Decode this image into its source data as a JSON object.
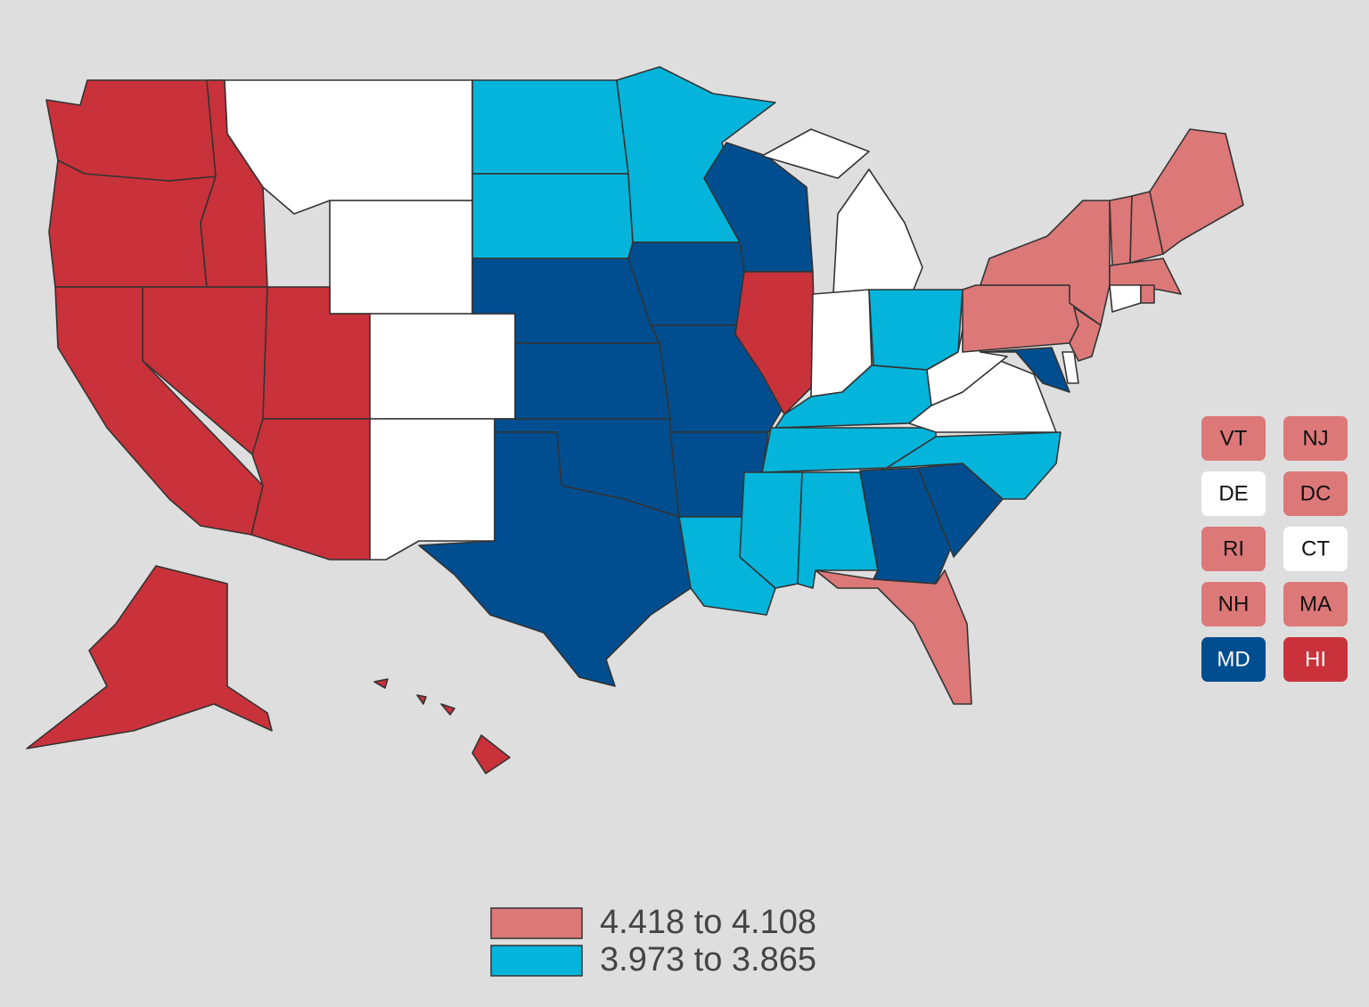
{
  "map": {
    "regions": [
      {
        "color": "#c9323a"
      },
      {
        "color": "#c9323a"
      },
      {
        "color": "#c9323a"
      },
      {
        "color": "#c9323a"
      },
      {
        "color": "#c9323a"
      },
      {
        "color": "#ffffff"
      },
      {
        "color": "#ffffff"
      },
      {
        "color": "#c9323a"
      },
      {
        "color": "#c9323a"
      },
      {
        "color": "#ffffff"
      },
      {
        "color": "#ffffff"
      },
      {
        "color": "#04b4da"
      },
      {
        "color": "#04b4da"
      },
      {
        "color": "#004e8f"
      },
      {
        "color": "#004e8f"
      },
      {
        "color": "#004e8f"
      },
      {
        "color": "#004e8f"
      },
      {
        "color": "#04b4da"
      },
      {
        "color": "#004e8f"
      },
      {
        "color": "#004e8f"
      },
      {
        "color": "#004e8f"
      },
      {
        "color": "#04b4da"
      },
      {
        "color": "#004e8f"
      },
      {
        "color": "#c9323a"
      },
      {
        "color": "#ffffff"
      },
      {
        "color": "#ffffff"
      },
      {
        "color": "#ffffff"
      },
      {
        "color": "#04b4da"
      },
      {
        "color": "#04b4da"
      },
      {
        "color": "#04b4da"
      },
      {
        "color": "#04b4da"
      },
      {
        "color": "#04b4da"
      },
      {
        "color": "#004e8f"
      },
      {
        "color": "#dc7878"
      },
      {
        "color": "#004e8f"
      },
      {
        "color": "#04b4da"
      },
      {
        "color": "#ffffff"
      },
      {
        "color": "#ffffff"
      },
      {
        "color": "#dc7878"
      },
      {
        "color": "#dc7878"
      },
      {
        "color": "#004e8f"
      },
      {
        "color": "#ffffff"
      },
      {
        "color": "#dc7878"
      },
      {
        "color": "#dc7878"
      },
      {
        "color": "#dc7878"
      },
      {
        "color": "#dc7878"
      },
      {
        "color": "#dc7878"
      },
      {
        "color": "#ffffff"
      },
      {
        "color": "#dc7878"
      },
      {
        "color": "#c9323a"
      },
      {
        "color": "#c9323a"
      },
      {
        "color": "#c9323a"
      },
      {
        "color": "#c9323a"
      },
      {
        "color": "#c9323a"
      }
    ]
  },
  "tiles": [
    {
      "label": "VT",
      "color": "#dc7878"
    },
    {
      "label": "NJ",
      "color": "#dc7878"
    },
    {
      "label": "DE",
      "color": "#ffffff"
    },
    {
      "label": "DC",
      "color": "#dc7878"
    },
    {
      "label": "RI",
      "color": "#dc7878"
    },
    {
      "label": "CT",
      "color": "#ffffff"
    },
    {
      "label": "NH",
      "color": "#dc7878"
    },
    {
      "label": "MA",
      "color": "#dc7878"
    },
    {
      "label": "MD",
      "color": "#004e8f"
    },
    {
      "label": "HI",
      "color": "#c9323a"
    }
  ],
  "legend": [
    {
      "label": "4.418 to 4.108",
      "color": "#dc7878"
    },
    {
      "label": "3.973 to 3.865",
      "color": "#04b4da"
    }
  ]
}
